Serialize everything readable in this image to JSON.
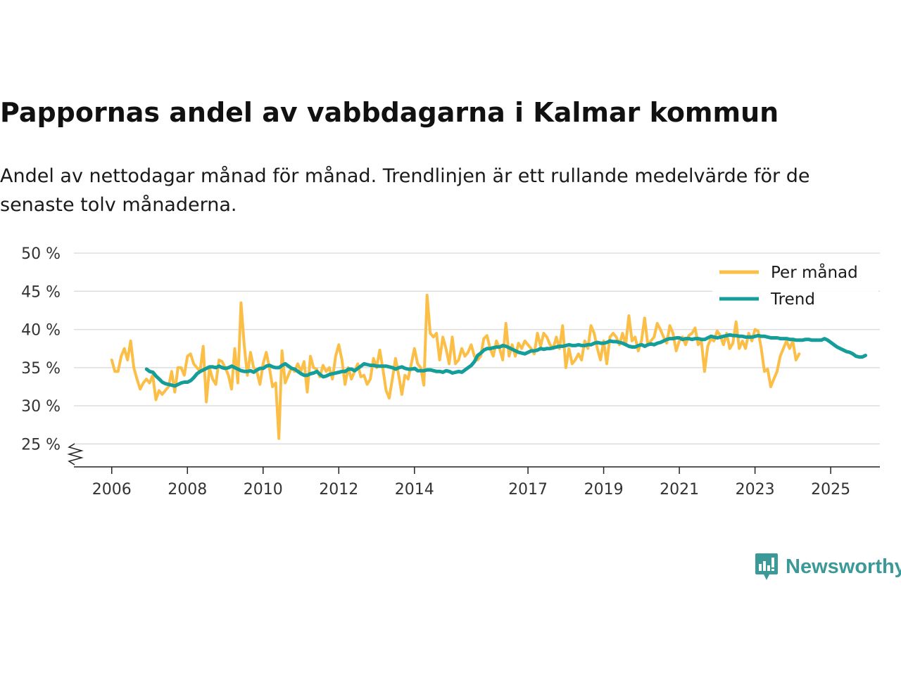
{
  "title": "Pappornas andel av vabbdagarna i Kalmar kommun",
  "subtitle": "Andel av nettodagar månad för månad. Trendlinjen är ett rullande medelvärde för de senaste tolv månaderna.",
  "brand": {
    "name": "Newsworthy"
  },
  "chart_data": {
    "type": "line",
    "title": "Pappornas andel av vabbdagarna i Kalmar kommun",
    "xlabel": "",
    "ylabel": "",
    "x_ticks": [
      "2006",
      "2008",
      "2010",
      "2012",
      "2014",
      "2017",
      "2019",
      "2021",
      "2023",
      "2025"
    ],
    "y_ticks": [
      "25 %",
      "30 %",
      "35 %",
      "40 %",
      "45 %",
      "50 %"
    ],
    "y_tick_values": [
      25,
      30,
      35,
      40,
      45,
      50
    ],
    "ylim": [
      22,
      50
    ],
    "xlim": [
      2005,
      2026.3
    ],
    "grid": true,
    "legend_position": "top-right",
    "colors": {
      "monthly": "#fbbe46",
      "trend": "#159d9a",
      "grid": "#dddddd",
      "axis": "#222222"
    },
    "series": [
      {
        "name": "Per månad",
        "x_start": 2006.0,
        "step": 0.08333,
        "values": [
          36,
          34.5,
          34.5,
          36.5,
          37.5,
          36,
          38.5,
          35,
          33.5,
          32.2,
          33,
          33.5,
          33,
          34,
          30.8,
          32,
          31.5,
          32,
          32.5,
          34.5,
          31.8,
          35,
          35,
          34,
          36.5,
          36.8,
          35.5,
          35,
          34.5,
          37.8,
          30.5,
          35,
          33.5,
          32.8,
          36,
          35.8,
          35,
          34,
          32.2,
          37.5,
          33,
          43.5,
          38,
          34,
          37,
          35,
          34.5,
          32.8,
          35.5,
          37,
          35,
          32.5,
          33,
          25.7,
          37.2,
          33,
          34,
          35,
          34.5,
          35.5,
          34.5,
          35.8,
          31.8,
          36.5,
          35,
          34.8,
          33.8,
          35.3,
          34.5,
          35,
          33.5,
          36.5,
          38,
          36,
          32.8,
          35,
          33.5,
          34.5,
          35.5,
          33.8,
          34,
          32.8,
          33.5,
          36.2,
          35,
          37.3,
          34.8,
          32,
          31,
          33.5,
          36.2,
          34,
          31.5,
          34,
          33.5,
          35.5,
          37.5,
          35.5,
          35,
          32.7,
          44.5,
          39.5,
          39,
          39.5,
          36,
          39,
          37.5,
          35.5,
          39,
          35.5,
          36,
          37.5,
          36.5,
          37,
          38,
          36.5,
          36,
          36.5,
          38.8,
          39.2,
          37.5,
          36.5,
          38.5,
          37.5,
          36,
          40.8,
          36.5,
          38,
          36.5,
          38.2,
          37.5,
          38.5,
          38,
          37.5,
          36.8,
          39.5,
          37.8,
          39.5,
          39,
          38,
          37.5,
          39,
          37.5,
          40.5,
          35,
          37.5,
          35.5,
          36,
          36.8,
          36,
          38.5,
          37.5,
          40.5,
          39.5,
          37.5,
          36,
          38.5,
          35.5,
          39,
          39.5,
          39,
          38,
          39.5,
          38,
          41.8,
          38.5,
          39,
          37.2,
          38.5,
          41.5,
          38,
          38.5,
          39,
          40.8,
          40,
          39,
          38.2,
          40.5,
          39.5,
          37.2,
          38.5,
          39,
          38,
          39.2,
          39.5,
          40.2,
          38,
          38.5,
          34.5,
          37.8,
          38.8,
          38.5,
          39.8,
          39.2,
          38,
          39.5,
          37.5,
          38.2,
          41,
          37.5,
          38.5,
          37.5,
          39.5,
          38.5,
          40,
          39.8,
          37.5,
          34.5,
          34.8,
          32.5,
          33.5,
          34.5,
          36.5,
          37.5,
          38.5,
          37.5,
          38.5,
          36,
          36.8
        ]
      },
      {
        "name": "Trend",
        "x_start": 2006.92,
        "step": 0.08333,
        "values": [
          34.8,
          34.5,
          34.4,
          33.9,
          33.5,
          33.1,
          32.9,
          32.8,
          32.7,
          32.6,
          32.8,
          33,
          33.1,
          33.1,
          33.3,
          33.7,
          34.2,
          34.5,
          34.7,
          34.9,
          35.1,
          35.1,
          35,
          35.2,
          35,
          34.9,
          35,
          35.2,
          35,
          34.8,
          34.6,
          34.5,
          34.5,
          34.6,
          34.4,
          34.7,
          34.9,
          34.9,
          35.2,
          35.3,
          35.1,
          35,
          35,
          35.3,
          35.5,
          35.2,
          34.9,
          34.8,
          34.5,
          34.2,
          34,
          34,
          34.2,
          34.3,
          34.5,
          34.1,
          33.8,
          33.9,
          34.1,
          34.2,
          34.3,
          34.4,
          34.5,
          34.5,
          34.8,
          34.8,
          34.6,
          34.9,
          35.2,
          35.5,
          35.4,
          35.3,
          35.3,
          35.2,
          35.2,
          35.2,
          35.2,
          35.1,
          35,
          34.8,
          35,
          35.1,
          34.9,
          34.8,
          34.8,
          34.9,
          34.6,
          34.6,
          34.6,
          34.7,
          34.7,
          34.6,
          34.5,
          34.5,
          34.4,
          34.6,
          34.5,
          34.3,
          34.4,
          34.5,
          34.4,
          34.7,
          35,
          35.3,
          35.8,
          36.6,
          36.9,
          37.3,
          37.5,
          37.5,
          37.6,
          37.7,
          37.7,
          37.9,
          37.8,
          37.6,
          37.4,
          37.2,
          37,
          36.9,
          36.8,
          37,
          37.2,
          37.2,
          37.3,
          37.5,
          37.4,
          37.5,
          37.5,
          37.6,
          37.7,
          37.8,
          37.8,
          37.9,
          38,
          37.9,
          37.9,
          38,
          37.9,
          37.9,
          38,
          38,
          38.2,
          38.3,
          38.2,
          38.2,
          38.3,
          38.5,
          38.4,
          38.4,
          38.3,
          38.2,
          38,
          37.8,
          37.7,
          37.7,
          37.9,
          38,
          37.8,
          38,
          38.1,
          38,
          38.2,
          38.3,
          38.5,
          38.7,
          38.8,
          38.8,
          38.9,
          38.9,
          38.7,
          38.8,
          38.8,
          38.7,
          38.8,
          38.8,
          38.7,
          38.7,
          38.9,
          39.1,
          39,
          38.9,
          39,
          39.1,
          39.2,
          39.3,
          39.2,
          39.2,
          39.1,
          39.1,
          39,
          39,
          39,
          39.1,
          39.2,
          39.1,
          39.1,
          39,
          38.9,
          38.9,
          38.9,
          38.8,
          38.8,
          38.8,
          38.7,
          38.7,
          38.6,
          38.6,
          38.6,
          38.7,
          38.7,
          38.6,
          38.6,
          38.6,
          38.6,
          38.8,
          38.6,
          38.3,
          38,
          37.7,
          37.5,
          37.3,
          37.1,
          37,
          36.8,
          36.5,
          36.4,
          36.4,
          36.6
        ]
      }
    ]
  }
}
